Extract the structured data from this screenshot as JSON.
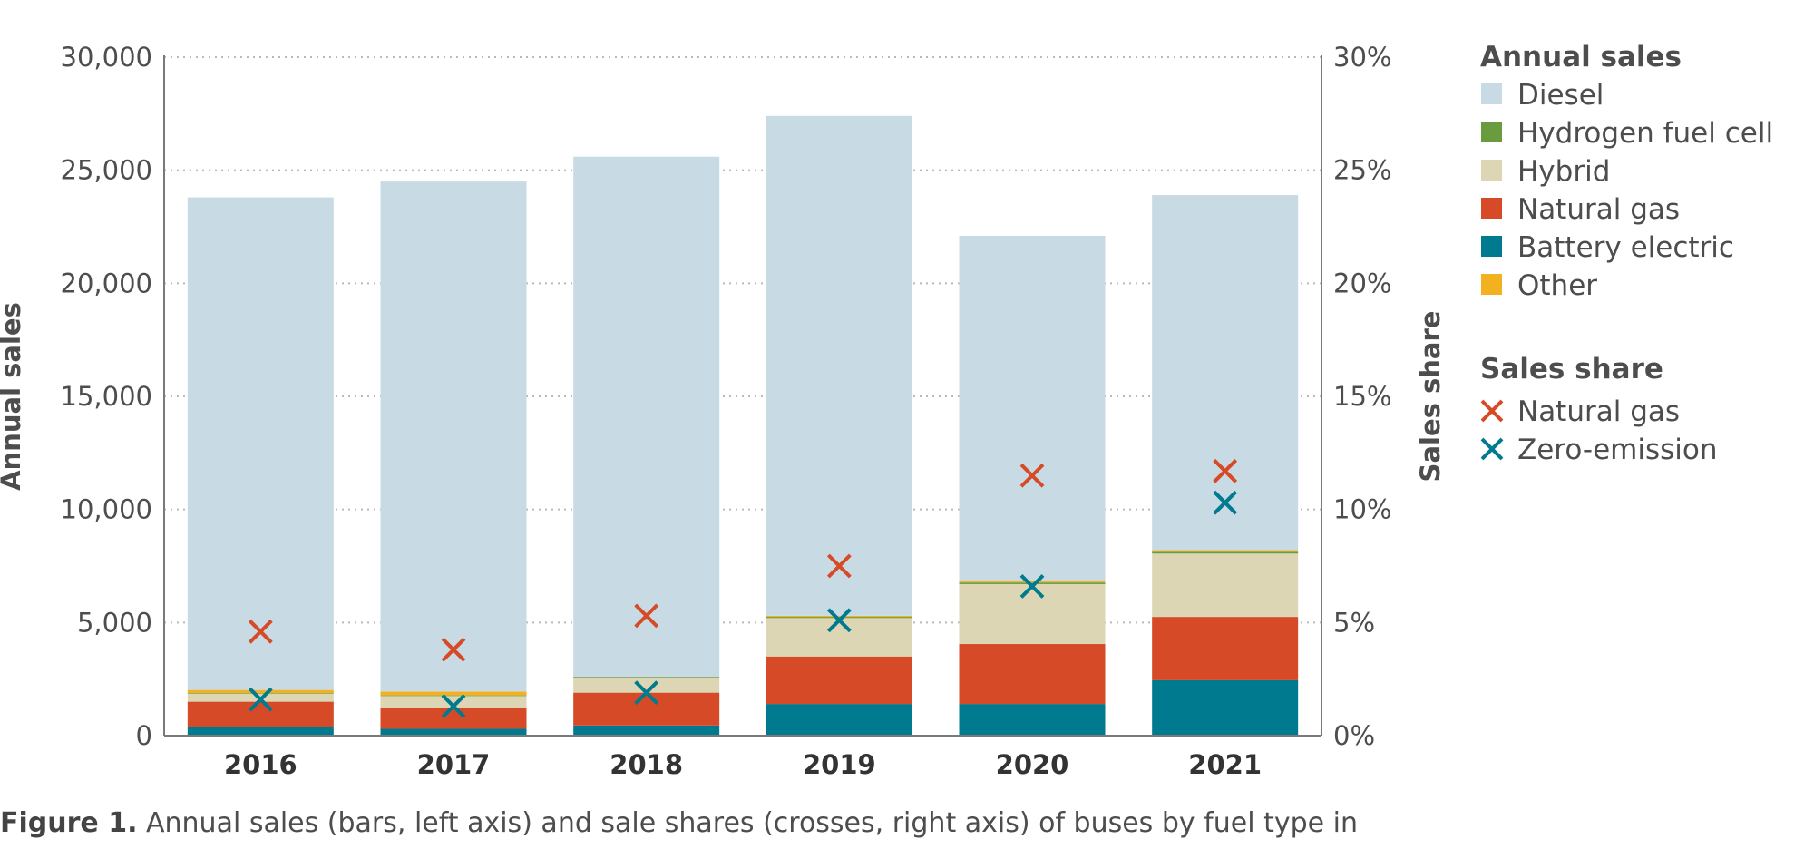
{
  "chart_data": {
    "type": "bar",
    "stacked": true,
    "categories": [
      "2016",
      "2017",
      "2018",
      "2019",
      "2020",
      "2021"
    ],
    "series": [
      {
        "name": "Battery electric",
        "color": "#007a8f",
        "values": [
          380,
          300,
          450,
          1400,
          1400,
          2450
        ]
      },
      {
        "name": "Natural gas",
        "color": "#d64a28",
        "values": [
          1120,
          950,
          1450,
          2100,
          2650,
          2800
        ]
      },
      {
        "name": "Hybrid",
        "color": "#ddd6b4",
        "values": [
          350,
          500,
          650,
          1700,
          2650,
          2800
        ]
      },
      {
        "name": "Hydrogen fuel cell",
        "color": "#6a9b3e",
        "values": [
          30,
          30,
          50,
          50,
          70,
          70
        ]
      },
      {
        "name": "Other",
        "color": "#f3b122",
        "values": [
          140,
          170,
          0,
          50,
          60,
          80
        ]
      },
      {
        "name": "Diesel",
        "color": "#c8dbe4",
        "values": [
          21780,
          22550,
          23000,
          22100,
          15270,
          15700
        ]
      }
    ],
    "share_series": [
      {
        "name": "Natural gas",
        "color": "#d64a28",
        "values": [
          4.6,
          3.8,
          5.3,
          7.5,
          11.5,
          11.7
        ]
      },
      {
        "name": "Zero-emission",
        "color": "#007a8f",
        "values": [
          1.6,
          1.3,
          1.9,
          5.1,
          6.6,
          10.3
        ]
      }
    ],
    "ylim": [
      0,
      30000
    ],
    "y_ticks": [
      "30,000",
      "25,000",
      "20,000",
      "15,000",
      "10,000",
      "5,000",
      "0"
    ],
    "y2lim": [
      0,
      30
    ],
    "y2_ticks": [
      "30%",
      "25%",
      "20%",
      "15%",
      "10%",
      "5%",
      "0%"
    ],
    "ylabel": "Annual sales",
    "y2label": "Sales share",
    "grid": true,
    "legend": {
      "placement": "right",
      "annual_title": "Annual sales",
      "annual_items": [
        "Diesel",
        "Hydrogen fuel cell",
        "Hybrid",
        "Natural gas",
        "Battery electric",
        "Other"
      ],
      "share_title": "Sales share",
      "share_items": [
        "Natural gas",
        "Zero-emission"
      ]
    }
  },
  "caption": {
    "label": "Figure 1.",
    "text": " Annual sales (bars, left axis) and sale shares (crosses, right axis) of buses by fuel type in"
  }
}
